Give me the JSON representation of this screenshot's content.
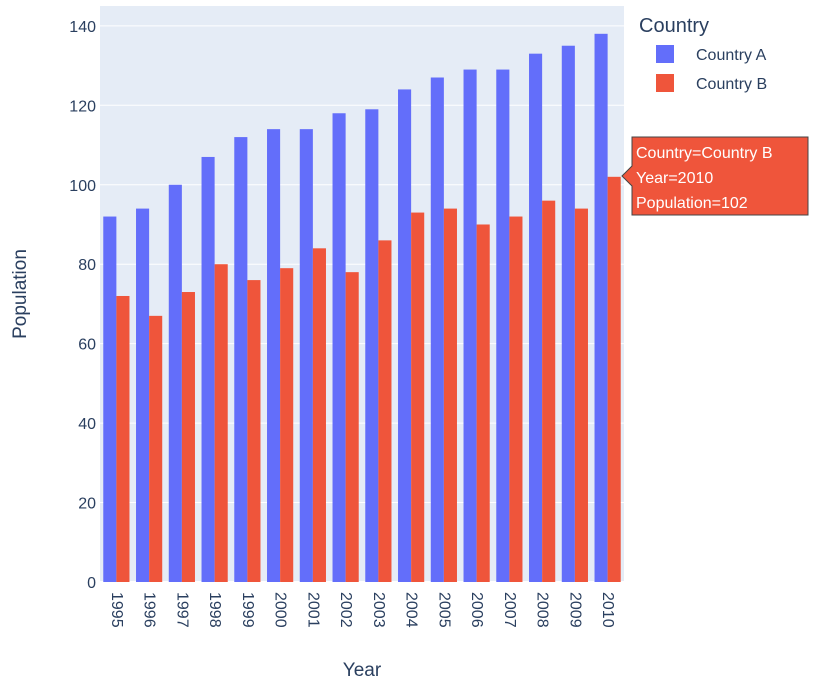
{
  "chart_data": {
    "type": "bar",
    "categories": [
      "1995",
      "1996",
      "1997",
      "1998",
      "1999",
      "2000",
      "2001",
      "2002",
      "2003",
      "2004",
      "2005",
      "2006",
      "2007",
      "2008",
      "2009",
      "2010"
    ],
    "series": [
      {
        "name": "Country A",
        "color": "#636efa",
        "values": [
          92,
          94,
          100,
          107,
          112,
          114,
          114,
          118,
          119,
          124,
          127,
          129,
          129,
          133,
          135,
          138
        ]
      },
      {
        "name": "Country B",
        "color": "#ef553b",
        "values": [
          72,
          67,
          73,
          80,
          76,
          79,
          84,
          78,
          86,
          93,
          94,
          90,
          92,
          96,
          94,
          102
        ]
      }
    ],
    "xlabel": "Year",
    "ylabel": "Population",
    "ylim": [
      0,
      145
    ],
    "yticks": [
      0,
      20,
      40,
      60,
      80,
      100,
      120,
      140
    ],
    "grid": true,
    "legend": {
      "title": "Country",
      "position": "top-right"
    },
    "hover": {
      "series": "Country B",
      "category": "2010",
      "lines": [
        "Country=Country B",
        "Year=2010",
        "Population=102"
      ]
    }
  }
}
